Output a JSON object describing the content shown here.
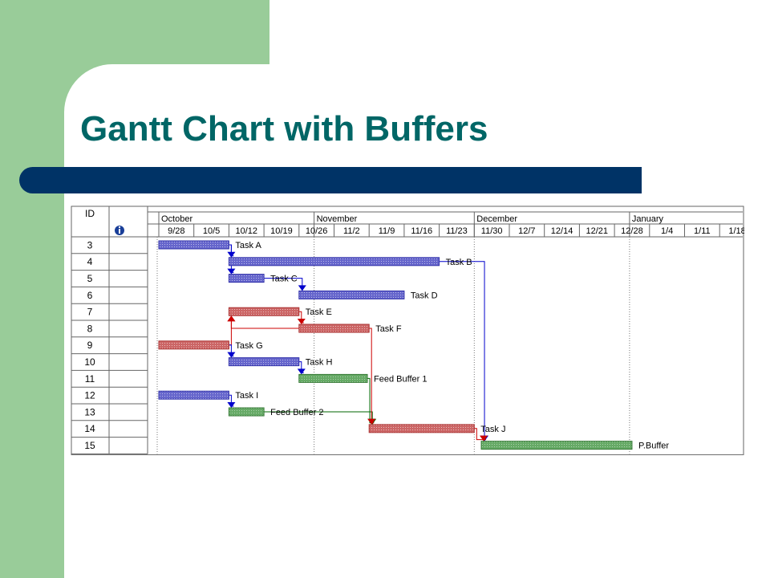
{
  "slide": {
    "title": "Gantt Chart with Buffers"
  },
  "chart_data": {
    "type": "gantt",
    "id_header": "ID",
    "info_icon": "info-icon",
    "months": [
      "October",
      "November",
      "December",
      "January"
    ],
    "weeks": [
      "9/28",
      "10/5",
      "10/12",
      "10/19",
      "10/26",
      "11/2",
      "11/9",
      "11/16",
      "11/23",
      "11/30",
      "12/7",
      "12/14",
      "12/21",
      "12/28",
      "1/4",
      "1/11",
      "1/18"
    ],
    "colors": {
      "normal": "#6666cc",
      "critical": "#cc6666",
      "buffer": "#66aa66",
      "link_blue": "#0000cc",
      "link_red": "#cc0000",
      "link_green": "#006600"
    },
    "tasks": [
      {
        "id": "3",
        "name": "Task A",
        "start": 0,
        "dur": 2,
        "kind": "normal"
      },
      {
        "id": "4",
        "name": "Task B",
        "start": 2,
        "dur": 6,
        "kind": "normal"
      },
      {
        "id": "5",
        "name": "Task C",
        "start": 2,
        "dur": 1,
        "kind": "normal"
      },
      {
        "id": "6",
        "name": "Task D",
        "start": 4,
        "dur": 3,
        "kind": "normal"
      },
      {
        "id": "7",
        "name": "Task E",
        "start": 2,
        "dur": 2,
        "kind": "critical"
      },
      {
        "id": "8",
        "name": "Task F",
        "start": 4,
        "dur": 2,
        "kind": "critical"
      },
      {
        "id": "9",
        "name": "Task G",
        "start": 0,
        "dur": 2,
        "kind": "critical"
      },
      {
        "id": "10",
        "name": "Task H",
        "start": 2,
        "dur": 2,
        "kind": "normal"
      },
      {
        "id": "11",
        "name": "Feed Buffer 1",
        "start": 4,
        "dur": 1.95,
        "kind": "buffer"
      },
      {
        "id": "12",
        "name": "Task I",
        "start": 0,
        "dur": 2,
        "kind": "normal"
      },
      {
        "id": "13",
        "name": "Feed Buffer 2",
        "start": 2,
        "dur": 1,
        "kind": "buffer"
      },
      {
        "id": "14",
        "name": "Task J",
        "start": 6,
        "dur": 3,
        "kind": "critical"
      },
      {
        "id": "15",
        "name": "P.Buffer",
        "start": 9.2,
        "dur": 4.3,
        "kind": "buffer"
      }
    ],
    "links": [
      {
        "from": "3",
        "to": "4",
        "color": "blue"
      },
      {
        "from": "3",
        "to": "5",
        "color": "blue"
      },
      {
        "from": "5",
        "to": "6",
        "color": "blue"
      },
      {
        "from": "7",
        "to": "8",
        "color": "red"
      },
      {
        "from": "8",
        "to": "7",
        "color": "red"
      },
      {
        "from": "9",
        "to": "7",
        "color": "red"
      },
      {
        "from": "9",
        "to": "10",
        "color": "blue"
      },
      {
        "from": "10",
        "to": "11",
        "color": "blue"
      },
      {
        "from": "12",
        "to": "13",
        "color": "blue"
      },
      {
        "from": "11",
        "to": "14",
        "color": "green"
      },
      {
        "from": "13",
        "to": "14",
        "color": "green"
      },
      {
        "from": "8",
        "to": "14",
        "color": "red"
      },
      {
        "from": "4",
        "to": "15",
        "color": "blue"
      },
      {
        "from": "14",
        "to": "15",
        "color": "red"
      }
    ]
  }
}
